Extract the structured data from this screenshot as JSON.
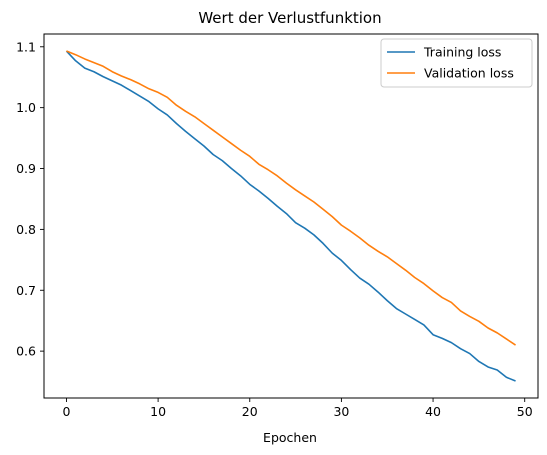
{
  "chart_data": {
    "type": "line",
    "title": "Wert der Verlustfunktion",
    "xlabel": "Epochen",
    "ylabel": "",
    "xlim": [
      -2.45,
      51.45
    ],
    "ylim": [
      0.523,
      1.121
    ],
    "xticks": [
      0,
      10,
      20,
      30,
      40,
      50
    ],
    "yticks": [
      0.6,
      0.7,
      0.8,
      0.9,
      1.0,
      1.1
    ],
    "ytick_labels": [
      "0.6",
      "0.7",
      "0.8",
      "0.9",
      "1.0",
      "1.1"
    ],
    "grid": false,
    "legend_position": "top-right",
    "x": [
      0,
      1,
      2,
      3,
      4,
      5,
      6,
      7,
      8,
      9,
      10,
      11,
      12,
      13,
      14,
      15,
      16,
      17,
      18,
      19,
      20,
      21,
      22,
      23,
      24,
      25,
      26,
      27,
      28,
      29,
      30,
      31,
      32,
      33,
      34,
      35,
      36,
      37,
      38,
      39,
      40,
      41,
      42,
      43,
      44,
      45,
      46,
      47,
      48,
      49
    ],
    "series": [
      {
        "name": "Training loss",
        "color": "#1f77b4",
        "values": [
          1.093,
          1.077,
          1.065,
          1.059,
          1.051,
          1.044,
          1.037,
          1.028,
          1.019,
          1.01,
          0.998,
          0.988,
          0.974,
          0.961,
          0.949,
          0.937,
          0.923,
          0.913,
          0.9,
          0.888,
          0.874,
          0.863,
          0.851,
          0.838,
          0.826,
          0.811,
          0.802,
          0.791,
          0.777,
          0.761,
          0.749,
          0.734,
          0.72,
          0.71,
          0.697,
          0.683,
          0.67,
          0.661,
          0.652,
          0.643,
          0.627,
          0.621,
          0.614,
          0.604,
          0.596,
          0.583,
          0.574,
          0.569,
          0.557,
          0.551
        ]
      },
      {
        "name": "Validation loss",
        "color": "#ff7f0e",
        "values": [
          1.093,
          1.087,
          1.08,
          1.074,
          1.068,
          1.059,
          1.052,
          1.046,
          1.039,
          1.031,
          1.025,
          1.017,
          1.004,
          0.994,
          0.985,
          0.974,
          0.963,
          0.952,
          0.941,
          0.93,
          0.92,
          0.907,
          0.898,
          0.888,
          0.876,
          0.865,
          0.855,
          0.845,
          0.833,
          0.821,
          0.807,
          0.797,
          0.786,
          0.774,
          0.764,
          0.755,
          0.744,
          0.733,
          0.721,
          0.711,
          0.699,
          0.688,
          0.68,
          0.666,
          0.657,
          0.649,
          0.638,
          0.63,
          0.62,
          0.61
        ]
      }
    ]
  }
}
